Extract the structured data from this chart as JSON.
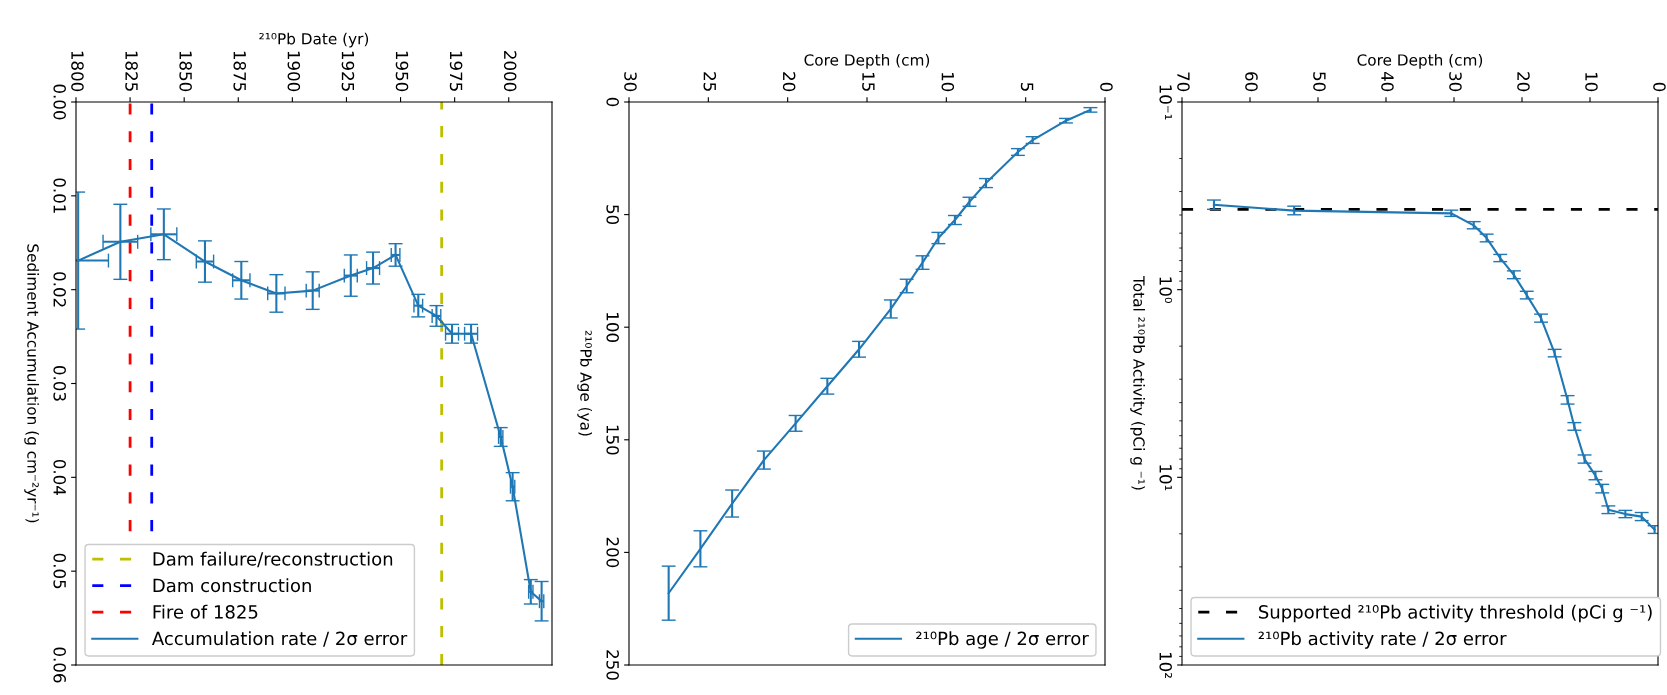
{
  "chart_data": [
    {
      "type": "line",
      "xlabel": "²¹⁰Pb Date (yr)",
      "ylabel": "Sediment Accumulation (g cm⁻²yr⁻¹)",
      "xlim": [
        1800,
        2020
      ],
      "xticks": [
        1800,
        1825,
        1850,
        1875,
        1900,
        1925,
        1950,
        1975,
        2000
      ],
      "ylim": [
        0.06,
        0.0
      ],
      "yticks": [
        {
          "value": 0.0,
          "label": "0.00"
        },
        {
          "value": 0.01,
          "label": "0.01"
        },
        {
          "value": 0.02,
          "label": "0.02"
        },
        {
          "value": 0.03,
          "label": "0.03"
        },
        {
          "value": 0.04,
          "label": "0.04"
        },
        {
          "value": 0.05,
          "label": "0.05"
        },
        {
          "value": 0.06,
          "label": "0.06"
        }
      ],
      "series": [
        {
          "name": "Accumulation rate / 2σ error",
          "color": "#1f77b4",
          "x": [
            1801,
            1820.5,
            1840.6,
            1859.6,
            1876.4,
            1892.6,
            1909.4,
            1927,
            1937.3,
            1947.7,
            1958.2,
            1966.6,
            1973.8,
            1982.6,
            1996.3,
            2001.8,
            2010.2,
            2015.2
          ],
          "values": [
            0.0169,
            0.0149,
            0.0141,
            0.017,
            0.019,
            0.0204,
            0.0201,
            0.0185,
            0.0177,
            0.0163,
            0.0217,
            0.0228,
            0.0247,
            0.0247,
            0.0357,
            0.041,
            0.0522,
            0.0532
          ],
          "errors": [
            0.0073,
            0.004,
            0.0027,
            0.0022,
            0.002,
            0.002,
            0.002,
            0.0022,
            0.0017,
            0.0012,
            0.0012,
            0.0011,
            0.001,
            0.001,
            0.001,
            0.0015,
            0.0013,
            0.0021
          ],
          "xerrors": [
            14,
            8,
            6,
            4,
            4,
            4,
            3,
            3,
            3,
            2,
            2,
            2,
            3,
            3,
            1,
            1,
            1,
            1
          ]
        }
      ],
      "ref_lines": [
        {
          "axis": "x",
          "value": 1969,
          "label": "Dam failure/reconstruction",
          "color": "#bfbf00",
          "line_style": "dashed"
        },
        {
          "axis": "x",
          "value": 1835,
          "label": "Dam construction",
          "color": "#0000ff",
          "line_style": "dashed"
        },
        {
          "axis": "x",
          "value": 1825,
          "label": "Fire of 1825",
          "color": "#ff0000",
          "line_style": "dashed"
        }
      ],
      "marker": "none",
      "line_style": "solid",
      "grid": false,
      "legend": "bottom left"
    },
    {
      "type": "line",
      "xlabel": "Core Depth (cm)",
      "ylabel": "²¹⁰Pb Age (ya)",
      "xlim": [
        30,
        0
      ],
      "xticks": [
        30,
        25,
        20,
        15,
        10,
        5,
        0
      ],
      "ylim": [
        250,
        0
      ],
      "yticks": [
        0,
        50,
        100,
        150,
        200,
        250
      ],
      "series": [
        {
          "name": "²¹⁰Pb age / 2σ error",
          "color": "#1f77b4",
          "x": [
            0.92,
            2.46,
            4.56,
            5.49,
            7.5,
            8.54,
            9.46,
            10.5,
            11.5,
            12.5,
            13.5,
            15.5,
            17.5,
            19.5,
            21.5,
            23.5,
            25.5,
            27.5
          ],
          "values": [
            3.5,
            8.3,
            16.9,
            22.2,
            36,
            44.3,
            52.4,
            60.4,
            71.3,
            81.7,
            91.9,
            109.8,
            126.2,
            142.7,
            159,
            178.3,
            198.4,
            218.1
          ],
          "errors": [
            1,
            1,
            1.5,
            1.5,
            2,
            2,
            2,
            2.5,
            3,
            3,
            4,
            3.5,
            3.5,
            3.5,
            4,
            6,
            8,
            12
          ]
        }
      ],
      "marker": "none",
      "line_style": "solid",
      "grid": false,
      "legend": "bottom right"
    },
    {
      "type": "line",
      "xlabel": "Core Depth (cm)",
      "ylabel": "Total ²¹⁰Pb Activity (pCi g ⁻¹)",
      "log": "y",
      "xlim": [
        70,
        0
      ],
      "xticks": [
        70,
        60,
        50,
        40,
        30,
        20,
        10,
        0
      ],
      "ylim": [
        100,
        0.1
      ],
      "yticks": [
        {
          "value": 0.1,
          "label": "10⁻¹"
        },
        {
          "value": 1,
          "label": "10⁰"
        },
        {
          "value": 10,
          "label": "10¹"
        },
        {
          "value": 100,
          "label": "10²"
        }
      ],
      "series": [
        {
          "name": "²¹⁰Pb activity rate / 2σ error",
          "color": "#1f77b4",
          "x": [
            65.3,
            53.5,
            30.4,
            27.1,
            25.2,
            23.2,
            21.2,
            19.3,
            17.2,
            15.2,
            13.3,
            12.3,
            10.8,
            9.2,
            8.2,
            7.3,
            4.8,
            2.4,
            0.5
          ],
          "values": [
            0.353,
            0.379,
            0.392,
            0.454,
            0.531,
            0.679,
            0.834,
            1.07,
            1.42,
            2.18,
            3.87,
            5.36,
            8.0,
            9.8,
            11.5,
            14.9,
            15.7,
            16.2,
            19.0
          ],
          "errors": [
            0.02,
            0.02,
            0.015,
            0.02,
            0.025,
            0.03,
            0.04,
            0.05,
            0.07,
            0.1,
            0.2,
            0.25,
            0.4,
            0.5,
            0.6,
            0.7,
            0.7,
            0.8,
            0.9
          ]
        }
      ],
      "ref_lines": [
        {
          "axis": "y",
          "value": 0.373,
          "label": "Supported ²¹⁰Pb activity threshold (pCi g ⁻¹)",
          "color": "#000000",
          "line_style": "dashed"
        }
      ],
      "marker": "none",
      "line_style": "solid",
      "grid": false,
      "legend": "bottom left"
    }
  ]
}
